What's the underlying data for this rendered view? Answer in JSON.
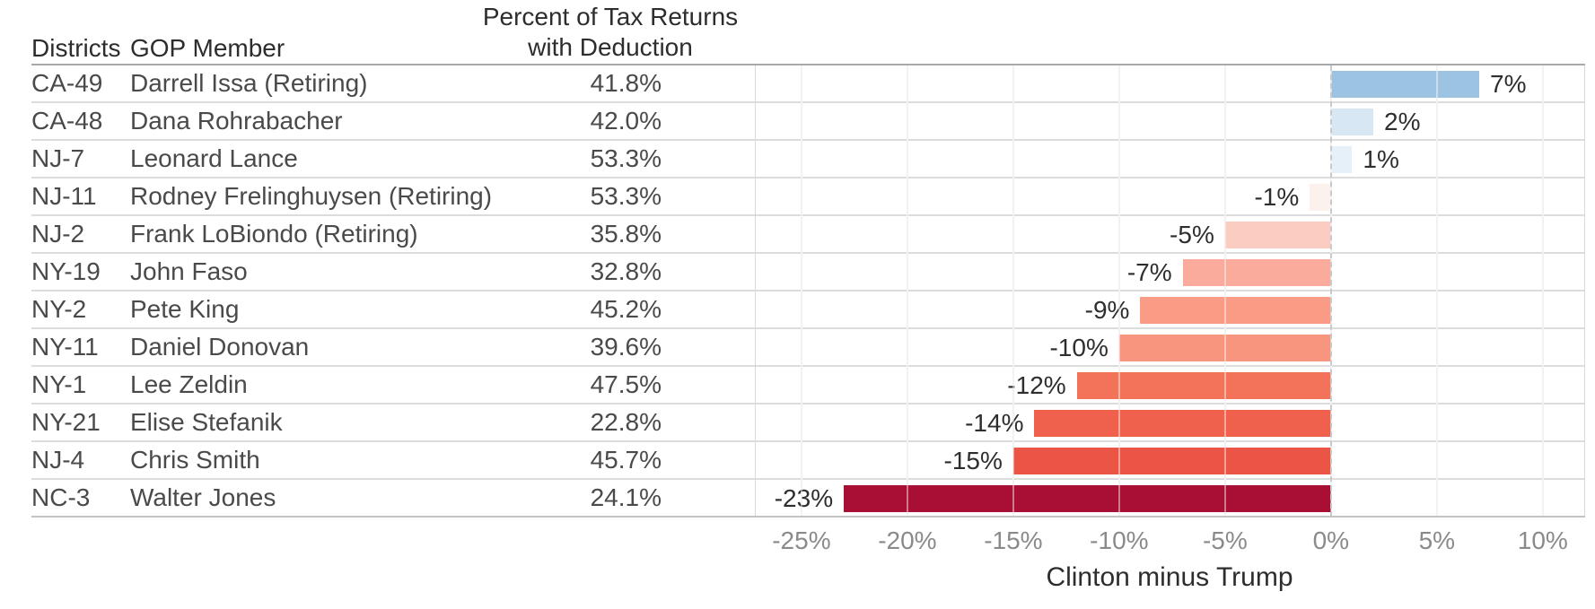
{
  "table": {
    "headers": {
      "districts": "Districts",
      "gop_member": "GOP Member",
      "deduction_line1": "Percent of Tax Returns",
      "deduction_line2": "with Deduction"
    },
    "rows": [
      {
        "district": "CA-49",
        "member": "Darrell Issa (Retiring)",
        "deduction": "41.8%"
      },
      {
        "district": "CA-48",
        "member": "Dana Rohrabacher",
        "deduction": "42.0%"
      },
      {
        "district": "NJ-7",
        "member": "Leonard Lance",
        "deduction": "53.3%"
      },
      {
        "district": "NJ-11",
        "member": "Rodney Frelinghuysen (Retiring)",
        "deduction": "53.3%"
      },
      {
        "district": "NJ-2",
        "member": "Frank LoBiondo (Retiring)",
        "deduction": "35.8%"
      },
      {
        "district": "NY-19",
        "member": "John Faso",
        "deduction": "32.8%"
      },
      {
        "district": "NY-2",
        "member": "Pete King",
        "deduction": "45.2%"
      },
      {
        "district": "NY-11",
        "member": "Daniel Donovan",
        "deduction": "39.6%"
      },
      {
        "district": "NY-1",
        "member": "Lee Zeldin",
        "deduction": "47.5%"
      },
      {
        "district": "NY-21",
        "member": "Elise Stefanik",
        "deduction": "22.8%"
      },
      {
        "district": "NJ-4",
        "member": "Chris Smith",
        "deduction": "45.7%"
      },
      {
        "district": "NC-3",
        "member": "Walter Jones",
        "deduction": "24.1%"
      }
    ]
  },
  "chart_data": {
    "type": "bar",
    "orientation": "horizontal",
    "title": "",
    "categories": [
      "CA-49",
      "CA-48",
      "NJ-7",
      "NJ-11",
      "NJ-2",
      "NY-19",
      "NY-2",
      "NY-11",
      "NY-1",
      "NY-21",
      "NJ-4",
      "NC-3"
    ],
    "values": [
      7,
      2,
      1,
      -1,
      -5,
      -7,
      -9,
      -10,
      -12,
      -14,
      -15,
      -23
    ],
    "bar_labels": [
      "7%",
      "2%",
      "1%",
      "-1%",
      "-5%",
      "-7%",
      "-9%",
      "-10%",
      "-12%",
      "-14%",
      "-15%",
      "-23%"
    ],
    "bar_colors": [
      "#9cc4e2",
      "#d7e8f4",
      "#e5f0f9",
      "#fdf1ee",
      "#fbccc2",
      "#fbab9b",
      "#f99b85",
      "#f8957e",
      "#f3735a",
      "#f0614d",
      "#ea5545",
      "#a90e35"
    ],
    "xlabel": "Clinton minus Trump",
    "ylabel": "",
    "xlim": [
      -27.2,
      12.0
    ],
    "x_ticks": [
      -25,
      -20,
      -15,
      -10,
      -5,
      0,
      5,
      10
    ],
    "x_tick_labels": [
      "-25%",
      "-20%",
      "-15%",
      "-10%",
      "-5%",
      "0%",
      "5%",
      "10%"
    ],
    "grid": "on",
    "zero_line": "dashed",
    "legend": "none"
  }
}
